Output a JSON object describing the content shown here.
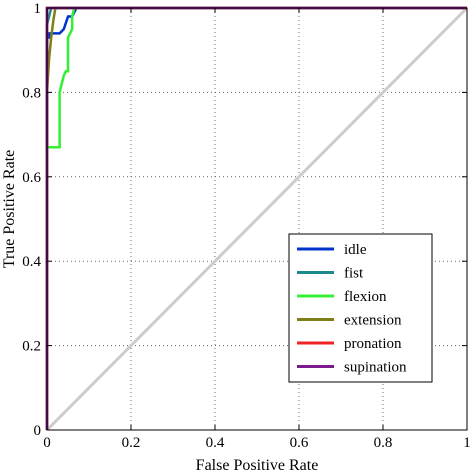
{
  "chart_data": {
    "type": "line",
    "title": "",
    "xlabel": "False Positive Rate",
    "ylabel": "True Positive Rate",
    "xlim": [
      0,
      1
    ],
    "ylim": [
      0,
      1
    ],
    "xticks": [
      "0",
      "0.2",
      "0.4",
      "0.6",
      "0.8",
      "1"
    ],
    "yticks": [
      "0",
      "0.2",
      "0.4",
      "0.6",
      "0.8",
      "1"
    ],
    "grid": true,
    "legend_position": "lower-right",
    "diagonal_color": "#cccccc",
    "series": [
      {
        "name": "idle",
        "color": "#0033cc",
        "x": [
          0,
          0,
          0.005,
          0.005,
          0.02,
          0.03,
          0.04,
          0.05,
          0.06,
          0.065,
          0.07,
          1
        ],
        "y": [
          0,
          0.93,
          0.93,
          0.94,
          0.94,
          0.94,
          0.95,
          0.98,
          0.98,
          0.99,
          1,
          1
        ]
      },
      {
        "name": "fist",
        "color": "#1a8a8a",
        "x": [
          0,
          0,
          0.01,
          1
        ],
        "y": [
          0,
          0.96,
          1,
          1
        ]
      },
      {
        "name": "flexion",
        "color": "#33ee33",
        "x": [
          0,
          0,
          0.03,
          0.03,
          0.035,
          0.04,
          0.045,
          0.05,
          0.05,
          0.055,
          0.06,
          0.06,
          0.065,
          1
        ],
        "y": [
          0,
          0.67,
          0.67,
          0.8,
          0.82,
          0.84,
          0.85,
          0.85,
          0.93,
          0.94,
          0.95,
          0.98,
          1,
          1
        ]
      },
      {
        "name": "extension",
        "color": "#7f7f1a",
        "x": [
          0,
          0,
          0.005,
          0.01,
          0.015,
          0.02,
          1
        ],
        "y": [
          0,
          0.8,
          0.88,
          0.93,
          0.97,
          1,
          1
        ]
      },
      {
        "name": "pronation",
        "color": "#ee2222",
        "x": [
          0,
          0,
          1
        ],
        "y": [
          0,
          1,
          1
        ]
      },
      {
        "name": "supination",
        "color": "#7a1a8c",
        "x": [
          0,
          0,
          1
        ],
        "y": [
          0,
          1,
          1
        ]
      }
    ]
  }
}
